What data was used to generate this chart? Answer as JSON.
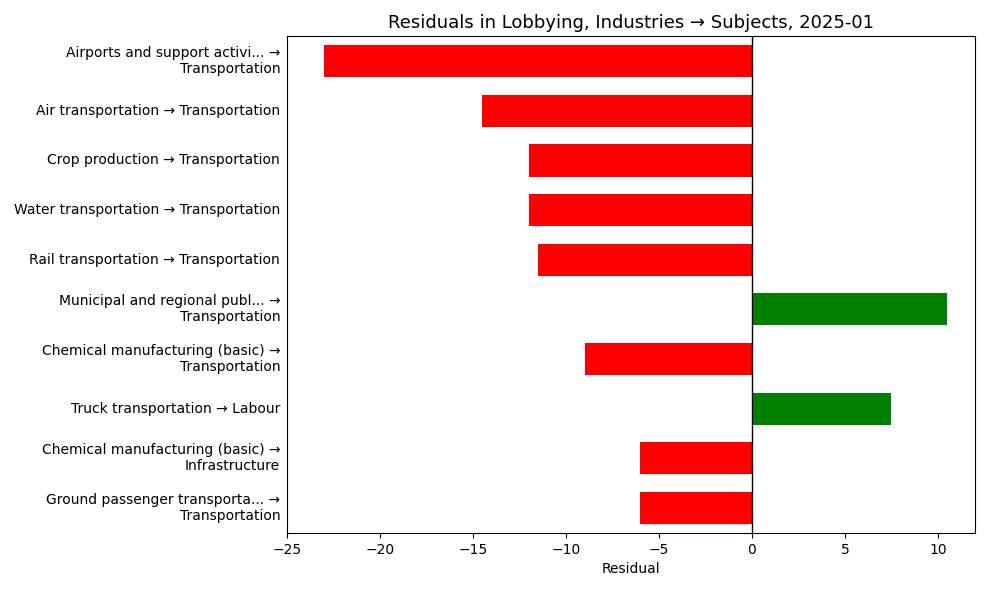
{
  "title": "Residuals in Lobbying, Industries → Subjects, 2025-01",
  "xlabel": "Residual",
  "labels": [
    "Airports and support activi... →\nTransportation",
    "Air transportation → Transportation",
    "Crop production → Transportation",
    "Water transportation → Transportation",
    "Rail transportation → Transportation",
    "Municipal and regional publ... →\nTransportation",
    "Chemical manufacturing (basic) →\nTransportation",
    "Truck transportation → Labour",
    "Chemical manufacturing (basic) →\nInfrastructure",
    "Ground passenger transporta... →\nTransportation"
  ],
  "values": [
    -23.0,
    -14.5,
    -12.0,
    -12.0,
    -11.5,
    10.5,
    -9.0,
    7.5,
    -6.0,
    -6.0
  ],
  "colors": [
    "#ff0000",
    "#ff0000",
    "#ff0000",
    "#ff0000",
    "#ff0000",
    "#008000",
    "#ff0000",
    "#008000",
    "#ff0000",
    "#ff0000"
  ],
  "xlim": [
    -25,
    12
  ],
  "xticks": [
    -25,
    -20,
    -15,
    -10,
    -5,
    0,
    5,
    10
  ],
  "background_color": "#ffffff",
  "title_fontsize": 13,
  "label_fontsize": 10,
  "tick_fontsize": 10,
  "bar_height": 0.65
}
